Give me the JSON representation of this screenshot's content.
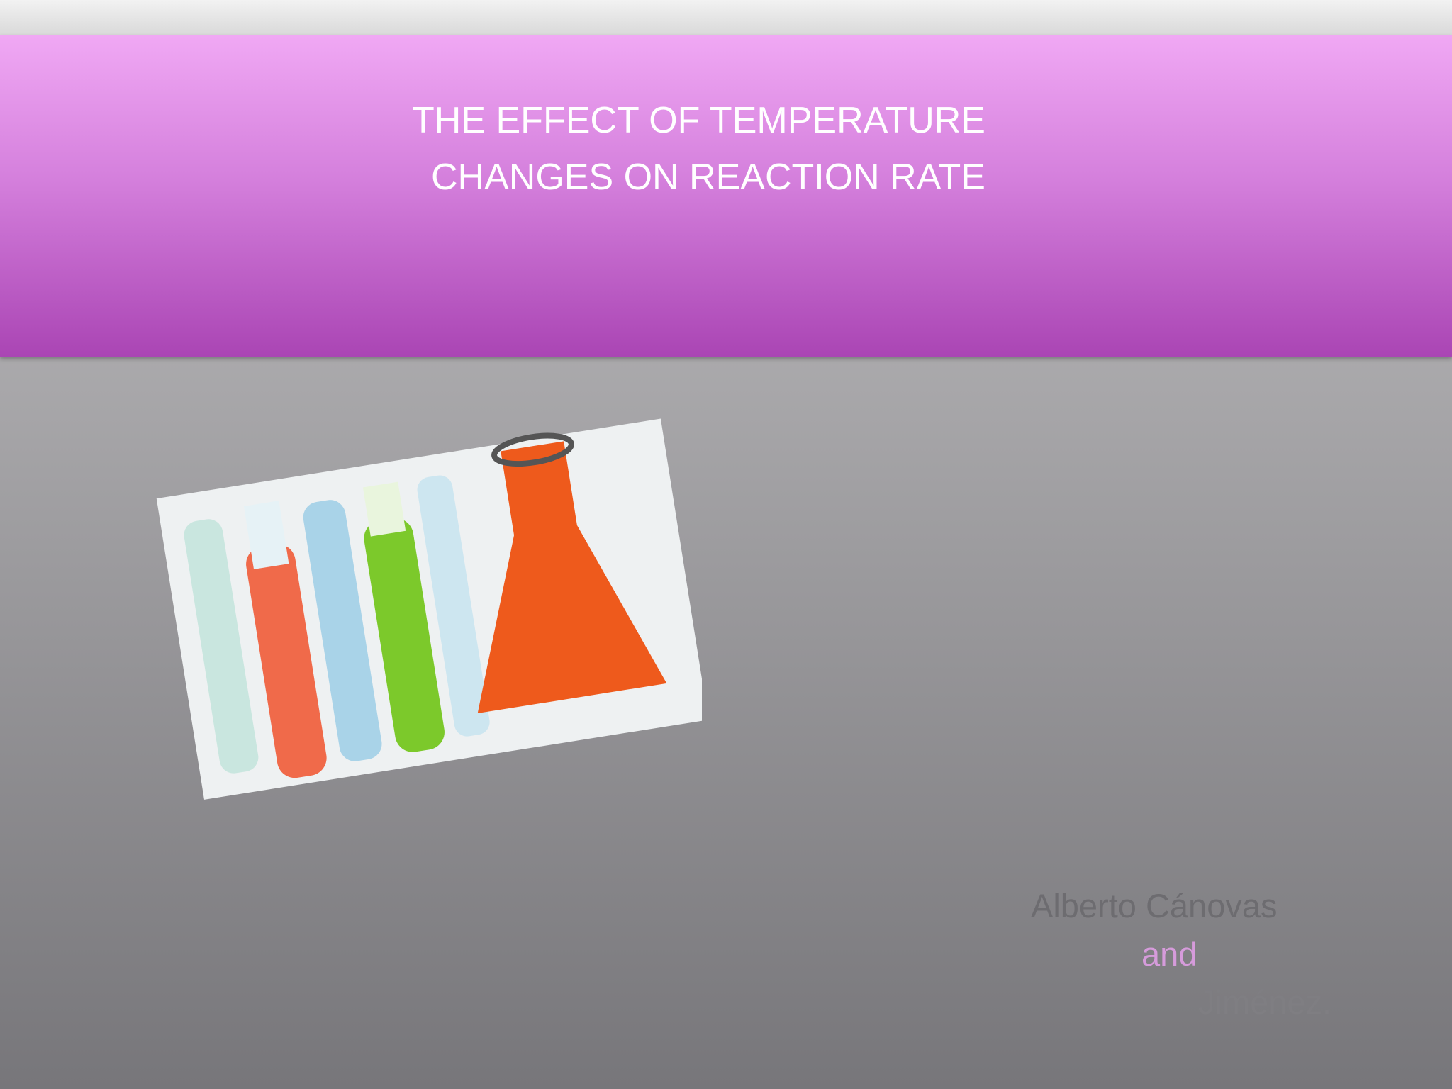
{
  "slide": {
    "title_lines": [
      "THE EFFECT OF TEMPERATURE",
      "CHANGES ON REACTION RATE"
    ],
    "authors": [
      "Alberto Cánovas",
      "and",
      "Jiménez."
    ]
  }
}
